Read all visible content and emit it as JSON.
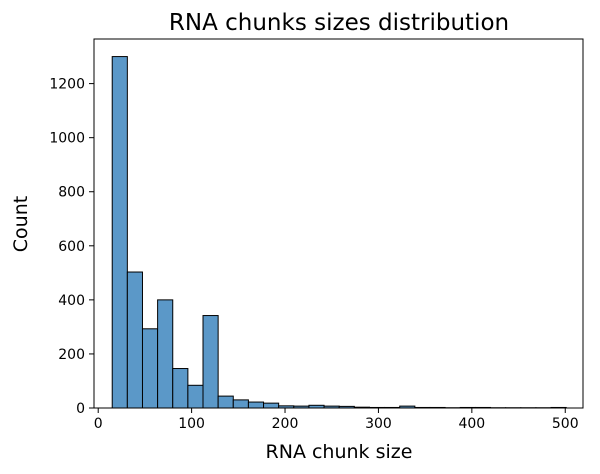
{
  "chart_data": {
    "type": "bar",
    "title": "RNA chunks sizes distribution",
    "xlabel": "RNA chunk size",
    "ylabel": "Count",
    "xlim": [
      -4.5,
      519
    ],
    "ylim": [
      0,
      1365
    ],
    "xticks": [
      0,
      100,
      200,
      300,
      400,
      500
    ],
    "yticks": [
      0,
      200,
      400,
      600,
      800,
      1000,
      1200
    ],
    "bar_color": "#5b98c8",
    "edge_color": "#000000",
    "grid": false,
    "legend": "none",
    "bins": [
      {
        "x0": 15.0,
        "x1": 31.2,
        "count": 1300
      },
      {
        "x0": 31.2,
        "x1": 47.4,
        "count": 503
      },
      {
        "x0": 47.4,
        "x1": 63.6,
        "count": 293
      },
      {
        "x0": 63.6,
        "x1": 79.8,
        "count": 400
      },
      {
        "x0": 79.8,
        "x1": 96.0,
        "count": 146
      },
      {
        "x0": 96.0,
        "x1": 112.2,
        "count": 84
      },
      {
        "x0": 112.2,
        "x1": 128.4,
        "count": 342
      },
      {
        "x0": 128.4,
        "x1": 144.6,
        "count": 44
      },
      {
        "x0": 144.6,
        "x1": 160.8,
        "count": 30
      },
      {
        "x0": 160.8,
        "x1": 177.0,
        "count": 22
      },
      {
        "x0": 177.0,
        "x1": 193.2,
        "count": 18
      },
      {
        "x0": 193.2,
        "x1": 209.4,
        "count": 8
      },
      {
        "x0": 209.4,
        "x1": 225.6,
        "count": 7
      },
      {
        "x0": 225.6,
        "x1": 241.8,
        "count": 10
      },
      {
        "x0": 241.8,
        "x1": 258.0,
        "count": 7
      },
      {
        "x0": 258.0,
        "x1": 274.2,
        "count": 6
      },
      {
        "x0": 274.2,
        "x1": 290.4,
        "count": 3
      },
      {
        "x0": 290.4,
        "x1": 306.6,
        "count": 2
      },
      {
        "x0": 306.6,
        "x1": 322.8,
        "count": 2
      },
      {
        "x0": 322.8,
        "x1": 339.0,
        "count": 7
      },
      {
        "x0": 339.0,
        "x1": 355.2,
        "count": 2
      },
      {
        "x0": 355.2,
        "x1": 371.4,
        "count": 2
      },
      {
        "x0": 371.4,
        "x1": 387.6,
        "count": 1
      },
      {
        "x0": 387.6,
        "x1": 403.8,
        "count": 2
      },
      {
        "x0": 403.8,
        "x1": 420.0,
        "count": 2
      },
      {
        "x0": 420.0,
        "x1": 436.2,
        "count": 1
      },
      {
        "x0": 436.2,
        "x1": 452.4,
        "count": 1
      },
      {
        "x0": 452.4,
        "x1": 468.6,
        "count": 1
      },
      {
        "x0": 468.6,
        "x1": 484.8,
        "count": 1
      },
      {
        "x0": 484.8,
        "x1": 501.0,
        "count": 2
      }
    ]
  }
}
